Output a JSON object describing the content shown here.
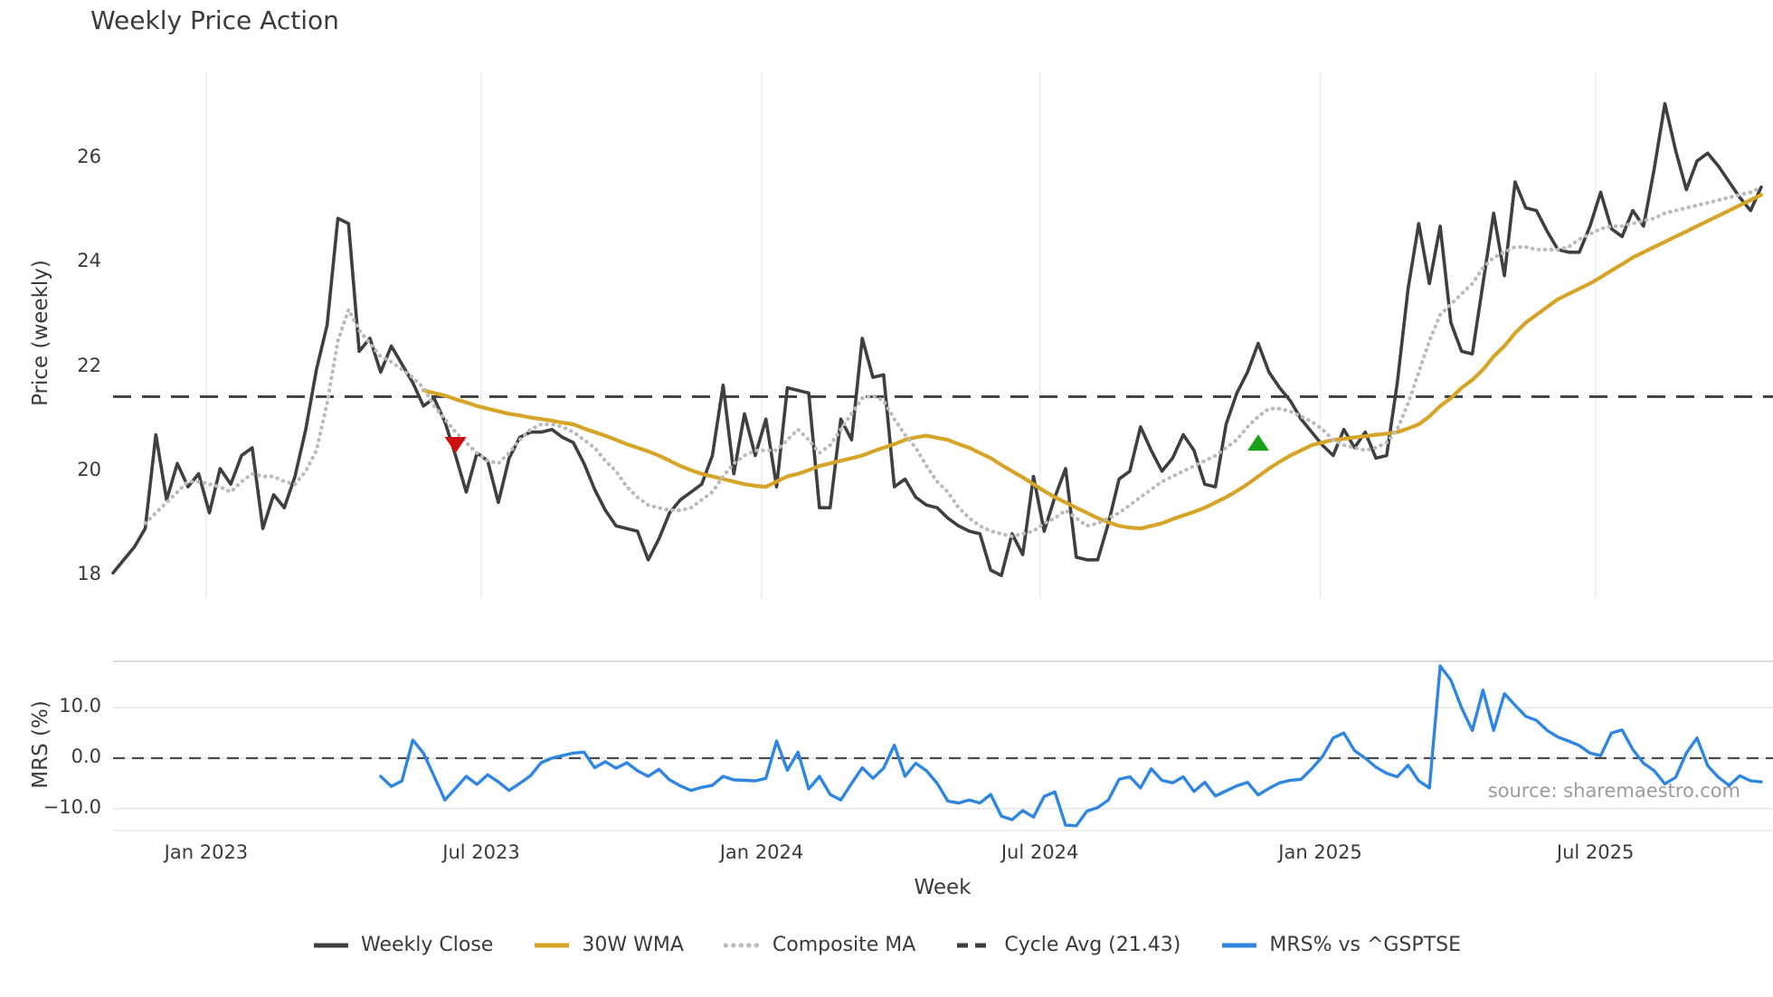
{
  "title": "Weekly Price Action",
  "source": "source: sharemaestro.com",
  "colors": {
    "close": "#3f3f3f",
    "wma": "#d6a427",
    "composite": "#bbbbbb",
    "cycle": "#3d3d3d",
    "mrs": "#2e86e0",
    "sell": "#cc1010",
    "buy": "#17a317",
    "grid_vertical": "#e9edf5",
    "grid_horizontal": "#e4e4e4",
    "panel_border": "#cfcfcf",
    "zero_dash": "#4a4a4a",
    "text": "#3a3a3a",
    "source_text": "#9b9b9b"
  },
  "legend": {
    "items": [
      {
        "label": "Weekly Close",
        "style": "solid",
        "color_key": "close"
      },
      {
        "label": "30W WMA",
        "style": "solid",
        "color_key": "wma"
      },
      {
        "label": "Composite MA",
        "style": "dotted",
        "color_key": "composite"
      },
      {
        "label": "Cycle Avg (21.43)",
        "style": "dashed",
        "color_key": "cycle"
      },
      {
        "label": "MRS% vs ^GSPTSE",
        "style": "solid",
        "color_key": "mrs"
      }
    ]
  },
  "chart_data": {
    "type": "line",
    "xlabel": "Week",
    "x_axis": {
      "unit": "weekly index from first plotted week (Nov 2022)",
      "start_week": 0,
      "end_week": 154,
      "ticks": [
        {
          "label": "Jan 2023",
          "week": 8.7
        },
        {
          "label": "Jul 2023",
          "week": 34.4
        },
        {
          "label": "Jan 2024",
          "week": 60.6
        },
        {
          "label": "Jul 2024",
          "week": 86.6
        },
        {
          "label": "Jan 2025",
          "week": 112.8
        },
        {
          "label": "Jul 2025",
          "week": 138.5
        }
      ]
    },
    "panels": [
      {
        "id": "price",
        "ylabel": "Price (weekly)",
        "ylim": [
          17.55,
          27.65
        ],
        "grid": "vertical-only",
        "yticks": [
          {
            "value": 18,
            "label": "18"
          },
          {
            "value": 20,
            "label": "20"
          },
          {
            "value": 22,
            "label": "22"
          },
          {
            "value": 24,
            "label": "24"
          },
          {
            "value": 26,
            "label": "26"
          }
        ],
        "hline": {
          "label": "Cycle Avg (21.43)",
          "value": 21.43,
          "style": "dashed",
          "color_key": "cycle"
        },
        "markers": [
          {
            "name": "sell-signal",
            "shape": "triangle-down",
            "color_key": "sell",
            "week": 32,
            "value": 20.5
          },
          {
            "name": "buy-signal",
            "shape": "triangle-up",
            "color_key": "buy",
            "week": 107,
            "value": 20.55
          }
        ],
        "series": [
          {
            "name": "Weekly Close",
            "style": "solid",
            "color_key": "close",
            "width": 3.6,
            "start_week": 0,
            "values": [
              18.05,
              18.3,
              18.55,
              18.9,
              20.7,
              19.45,
              20.15,
              19.7,
              19.95,
              19.2,
              20.05,
              19.75,
              20.3,
              20.45,
              18.9,
              19.55,
              19.3,
              19.9,
              20.8,
              21.95,
              22.8,
              24.85,
              24.75,
              22.3,
              22.55,
              21.9,
              22.4,
              22.05,
              21.7,
              21.25,
              21.4,
              20.95,
              20.3,
              19.6,
              20.35,
              20.2,
              19.4,
              20.25,
              20.65,
              20.75,
              20.75,
              20.8,
              20.65,
              20.55,
              20.15,
              19.65,
              19.25,
              18.95,
              18.9,
              18.85,
              18.3,
              18.7,
              19.2,
              19.45,
              19.6,
              19.75,
              20.3,
              21.65,
              19.95,
              21.1,
              20.3,
              21.0,
              19.7,
              21.6,
              21.55,
              21.5,
              19.3,
              19.3,
              21.0,
              20.6,
              22.55,
              21.8,
              21.85,
              19.7,
              19.85,
              19.5,
              19.35,
              19.3,
              19.1,
              18.95,
              18.85,
              18.8,
              18.1,
              18.0,
              18.8,
              18.4,
              19.9,
              18.85,
              19.5,
              20.05,
              18.35,
              18.3,
              18.3,
              19.0,
              19.85,
              20.0,
              20.85,
              20.4,
              20.0,
              20.25,
              20.7,
              20.4,
              19.75,
              19.7,
              20.9,
              21.5,
              21.9,
              22.45,
              21.9,
              21.6,
              21.35,
              21.0,
              20.75,
              20.5,
              20.3,
              20.8,
              20.45,
              20.75,
              20.25,
              20.3,
              21.7,
              23.5,
              24.75,
              23.6,
              24.7,
              22.85,
              22.3,
              22.25,
              23.6,
              24.95,
              23.75,
              25.55,
              25.05,
              25.0,
              24.6,
              24.25,
              24.2,
              24.2,
              24.7,
              25.35,
              24.65,
              24.5,
              25.0,
              24.7,
              25.8,
              27.05,
              26.15,
              25.4,
              25.95,
              26.1,
              25.85,
              25.55,
              25.25,
              25.0,
              25.45
            ]
          },
          {
            "name": "30W WMA",
            "style": "solid",
            "color_key": "wma",
            "width": 4.2,
            "start_week": 29,
            "values": [
              21.55,
              21.5,
              21.45,
              21.38,
              21.32,
              21.25,
              21.2,
              21.15,
              21.1,
              21.07,
              21.03,
              21.0,
              20.97,
              20.93,
              20.9,
              20.82,
              20.75,
              20.68,
              20.6,
              20.52,
              20.45,
              20.38,
              20.3,
              20.2,
              20.1,
              20.02,
              19.95,
              19.9,
              19.85,
              19.8,
              19.75,
              19.72,
              19.7,
              19.8,
              19.9,
              19.95,
              20.02,
              20.1,
              20.15,
              20.2,
              20.25,
              20.3,
              20.38,
              20.45,
              20.52,
              20.6,
              20.65,
              20.68,
              20.64,
              20.6,
              20.52,
              20.45,
              20.35,
              20.25,
              20.12,
              20.0,
              19.88,
              19.75,
              19.62,
              19.5,
              19.4,
              19.3,
              19.2,
              19.1,
              19.02,
              18.95,
              18.92,
              18.9,
              18.95,
              19.0,
              19.08,
              19.15,
              19.22,
              19.3,
              19.4,
              19.5,
              19.62,
              19.75,
              19.9,
              20.05,
              20.18,
              20.3,
              20.4,
              20.5,
              20.55,
              20.6,
              20.62,
              20.65,
              20.67,
              20.7,
              20.72,
              20.75,
              20.82,
              20.9,
              21.05,
              21.25,
              21.4,
              21.6,
              21.75,
              21.95,
              22.2,
              22.4,
              22.65,
              22.85,
              23.0,
              23.15,
              23.3,
              23.4,
              23.5,
              23.6,
              23.72,
              23.85,
              23.97,
              24.1,
              24.2,
              24.3,
              24.4,
              24.5,
              24.6,
              24.7,
              24.8,
              24.9,
              25.0,
              25.1,
              25.2,
              25.3
            ]
          },
          {
            "name": "Composite MA",
            "style": "dotted",
            "color_key": "composite",
            "width": 3.6,
            "start_week": 3,
            "values": [
              19.0,
              19.2,
              19.4,
              19.6,
              19.8,
              19.8,
              19.75,
              19.7,
              19.6,
              19.8,
              19.95,
              19.9,
              19.9,
              19.8,
              19.75,
              20.0,
              20.4,
              21.3,
              22.5,
              23.1,
              22.7,
              22.45,
              22.2,
              22.1,
              21.95,
              21.8,
              21.6,
              21.25,
              21.0,
              20.75,
              20.55,
              20.35,
              20.2,
              20.15,
              20.35,
              20.6,
              20.8,
              20.9,
              20.9,
              20.85,
              20.75,
              20.6,
              20.45,
              20.2,
              20.0,
              19.7,
              19.5,
              19.35,
              19.3,
              19.25,
              19.25,
              19.3,
              19.45,
              19.6,
              19.9,
              20.15,
              20.3,
              20.4,
              20.4,
              20.4,
              20.6,
              20.8,
              20.6,
              20.35,
              20.5,
              20.8,
              21.1,
              21.4,
              21.45,
              21.35,
              21.0,
              20.7,
              20.45,
              20.1,
              19.8,
              19.6,
              19.3,
              19.1,
              18.95,
              18.85,
              18.8,
              18.75,
              18.8,
              18.85,
              19.0,
              19.1,
              19.25,
              19.1,
              18.95,
              19.0,
              19.1,
              19.2,
              19.35,
              19.5,
              19.65,
              19.8,
              19.9,
              20.0,
              20.1,
              20.2,
              20.3,
              20.45,
              20.6,
              20.85,
              21.05,
              21.2,
              21.2,
              21.15,
              21.05,
              20.95,
              20.8,
              20.6,
              20.5,
              20.45,
              20.4,
              20.45,
              20.55,
              20.8,
              21.3,
              21.9,
              22.5,
              23.0,
              23.2,
              23.4,
              23.6,
              23.9,
              24.1,
              24.2,
              24.3,
              24.3,
              24.25,
              24.25,
              24.25,
              24.3,
              24.45,
              24.55,
              24.65,
              24.7,
              24.7,
              24.75,
              24.8,
              24.85,
              24.95,
              25.0,
              25.05,
              25.1,
              25.15,
              25.2,
              25.25,
              25.3,
              25.35,
              25.45
            ]
          }
        ]
      },
      {
        "id": "mrs",
        "ylabel": "MRS (%)",
        "ylim": [
          -14.36,
          19.21
        ],
        "grid": "horizontal-only",
        "yticks": [
          {
            "value": 10,
            "label": "10.0"
          },
          {
            "value": 0,
            "label": "0.0"
          },
          {
            "value": -10,
            "label": "−10.0"
          }
        ],
        "hline": {
          "label": "zero line",
          "value": 0.0,
          "style": "dashed",
          "color_key": "zero_dash"
        },
        "markers": [],
        "series": [
          {
            "name": "MRS% vs ^GSPTSE",
            "style": "solid",
            "color_key": "mrs",
            "width": 3.4,
            "start_week": 25,
            "values": [
              -3.6,
              -5.6,
              -4.5,
              3.6,
              1.0,
              -3.6,
              -8.3,
              -6.0,
              -3.6,
              -5.2,
              -3.3,
              -4.7,
              -6.4,
              -5.0,
              -3.5,
              -0.9,
              0.0,
              0.5,
              1.0,
              1.2,
              -1.9,
              -0.7,
              -2.0,
              -0.9,
              -2.5,
              -3.6,
              -2.2,
              -4.3,
              -5.5,
              -6.4,
              -5.8,
              -5.4,
              -3.6,
              -4.3,
              -4.4,
              -4.5,
              -4.0,
              3.4,
              -2.4,
              1.2,
              -6.1,
              -3.6,
              -7.2,
              -8.3,
              -5.0,
              -1.9,
              -4.0,
              -2.0,
              2.6,
              -3.6,
              -1.0,
              -2.5,
              -5.0,
              -8.5,
              -8.9,
              -8.3,
              -8.9,
              -7.2,
              -11.5,
              -12.2,
              -10.4,
              -11.7,
              -7.6,
              -6.7,
              -13.3,
              -13.4,
              -10.5,
              -9.8,
              -8.3,
              -4.2,
              -3.7,
              -5.9,
              -2.1,
              -4.4,
              -4.9,
              -3.7,
              -6.6,
              -4.8,
              -7.5,
              -6.5,
              -5.5,
              -4.8,
              -7.3,
              -6.0,
              -4.9,
              -4.4,
              -4.2,
              -2.1,
              0.3,
              4.0,
              5.0,
              1.5,
              0.0,
              -1.8,
              -3.0,
              -3.7,
              -1.4,
              -4.5,
              -5.9,
              18.3,
              15.5,
              10.0,
              5.5,
              13.5,
              5.5,
              12.8,
              10.5,
              8.3,
              7.5,
              5.5,
              4.2,
              3.4,
              2.5,
              1.0,
              0.5,
              5.0,
              5.6,
              1.7,
              -1.0,
              -2.5,
              -5.1,
              -3.8,
              1.0,
              4.0,
              -1.5,
              -3.8,
              -5.4,
              -3.5,
              -4.5,
              -4.7
            ]
          }
        ]
      }
    ]
  }
}
